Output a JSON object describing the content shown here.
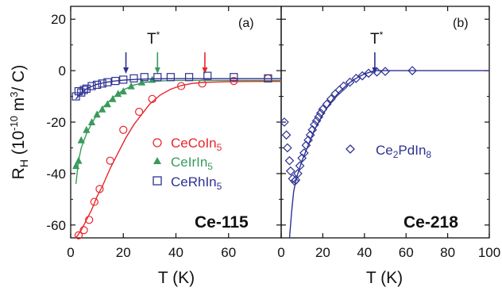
{
  "chart_data": [
    {
      "panel_label": "(a)",
      "type": "scatter",
      "annotation": "Ce-115",
      "ylabel": "R_H (10^-10 m^3/ C)",
      "xlabel": "T (K)",
      "xlim": [
        0,
        80
      ],
      "ylim": [
        -65,
        25
      ],
      "x_ticks": [
        0,
        20,
        40,
        60
      ],
      "y_ticks": [
        20,
        0,
        -20,
        -40,
        -60
      ],
      "tstar_label": "T*",
      "series": [
        {
          "name": "CeCoIn5",
          "marker": "circle-open",
          "color": "#e8262b",
          "x": [
            3,
            5,
            7,
            9,
            11,
            15,
            20,
            26,
            31,
            42,
            50,
            62,
            75
          ],
          "y": [
            -64,
            -62,
            -58,
            -51,
            -46,
            -35,
            -23,
            -16,
            -11,
            -6,
            -5,
            -4,
            -3
          ],
          "fit_x": [
            2,
            4,
            6,
            8,
            10,
            12,
            15,
            18,
            21,
            24,
            27,
            30,
            34,
            38,
            42,
            46,
            50,
            55,
            60,
            70,
            80
          ],
          "fit_y": [
            -65,
            -62,
            -58,
            -54,
            -49,
            -45,
            -38,
            -32,
            -26,
            -21,
            -17,
            -13,
            -9.5,
            -7.2,
            -5.8,
            -5,
            -4.6,
            -4.4,
            -4.3,
            -4.2,
            -4.2
          ],
          "arrow_x": 51
        },
        {
          "name": "CeIrIn5",
          "marker": "triangle-filled",
          "color": "#3a9a5c",
          "x": [
            2,
            3,
            4,
            6,
            8,
            10,
            12,
            14,
            16,
            18,
            20,
            23,
            27,
            31
          ],
          "y": [
            -37,
            -35,
            -27,
            -23,
            -20,
            -17,
            -15,
            -13,
            -11,
            -9,
            -8,
            -6,
            -4.5,
            -3.5
          ],
          "fit_x": [
            2,
            3,
            4,
            6,
            8,
            10,
            13,
            16,
            20,
            24,
            28,
            32,
            36,
            40,
            50,
            60,
            70,
            80
          ],
          "fit_y": [
            -44,
            -35,
            -30,
            -24.5,
            -20.5,
            -17,
            -13.5,
            -10.5,
            -7.5,
            -5.6,
            -4.6,
            -4.1,
            -3.9,
            -3.8,
            -3.8,
            -3.8,
            -3.8,
            -3.8
          ],
          "arrow_x": 33
        },
        {
          "name": "CeRhIn5",
          "marker": "square-open",
          "color": "#2e3192",
          "x": [
            2,
            3,
            4,
            5,
            6,
            8,
            10,
            12,
            14,
            17,
            20,
            24,
            28,
            33,
            38,
            45,
            52,
            62,
            75
          ],
          "y": [
            -10,
            -8,
            -8.5,
            -7.5,
            -7,
            -6,
            -5.5,
            -5,
            -4.5,
            -4,
            -3.5,
            -3,
            -2.5,
            -2.5,
            -2.5,
            -2.5,
            -2,
            -2.5,
            -3
          ],
          "fit_x": [
            2,
            4,
            6,
            8,
            10,
            13,
            16,
            20,
            25,
            30,
            40,
            50,
            60,
            70,
            80
          ],
          "fit_y": [
            -11,
            -8.6,
            -7.1,
            -6.1,
            -5.3,
            -4.6,
            -4.1,
            -3.7,
            -3.4,
            -3.2,
            -3.1,
            -3.1,
            -3.1,
            -3.1,
            -3.1
          ],
          "arrow_x": 21
        }
      ]
    },
    {
      "panel_label": "(b)",
      "type": "scatter",
      "annotation": "Ce-218",
      "xlabel": "T (K)",
      "xlim": [
        0,
        100
      ],
      "ylim": [
        -65,
        25
      ],
      "x_ticks": [
        0,
        20,
        40,
        60,
        80,
        100
      ],
      "tstar_label": "T*",
      "series": [
        {
          "name": "Ce2PdIn8",
          "marker": "diamond-open",
          "color": "#2e3192",
          "x": [
            1.5,
            2.5,
            3,
            4,
            4.5,
            5.5,
            6.5,
            7,
            8,
            9,
            10,
            11,
            12,
            13,
            14,
            15,
            16,
            17,
            18,
            19,
            20,
            22,
            24,
            26,
            28,
            30,
            33,
            36,
            39,
            42,
            46,
            50,
            63
          ],
          "y": [
            -20,
            -25,
            -30,
            -35,
            -39,
            -42,
            -43,
            -42.5,
            -40,
            -37,
            -34,
            -32,
            -29,
            -27,
            -25,
            -23,
            -21,
            -19.5,
            -18,
            -16.5,
            -15,
            -13,
            -11,
            -9,
            -7.5,
            -6,
            -4.5,
            -3,
            -2,
            -1,
            -0.5,
            -0.3,
            0
          ],
          "fit_x": [
            4,
            5,
            6,
            7,
            8,
            9,
            10,
            12,
            14,
            16,
            18,
            20,
            22,
            25,
            28,
            31,
            34,
            37,
            40,
            43,
            45,
            50,
            60,
            70,
            80,
            90,
            100
          ],
          "fit_y": [
            -65,
            -55,
            -47,
            -43,
            -40,
            -37.5,
            -35,
            -31,
            -27,
            -23,
            -20,
            -17,
            -14.5,
            -11,
            -8.2,
            -6,
            -4,
            -2.5,
            -1.3,
            -0.5,
            0,
            0,
            0,
            0,
            0,
            0,
            0
          ],
          "arrow_x": 45
        }
      ]
    }
  ]
}
